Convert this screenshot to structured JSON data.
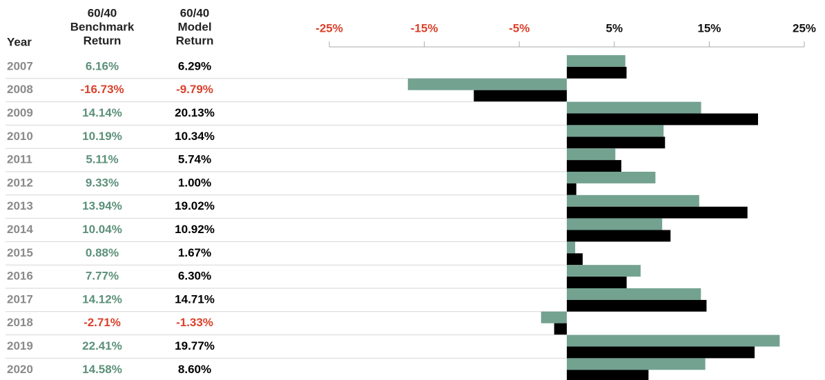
{
  "chart_data": {
    "type": "bar",
    "orientation": "horizontal",
    "year_header": "Year",
    "column_headers": [
      [
        "60/40",
        "Benchmark",
        "Return"
      ],
      [
        "60/40",
        "Model",
        "Return"
      ]
    ],
    "categories": [
      "2007",
      "2008",
      "2009",
      "2010",
      "2011",
      "2012",
      "2013",
      "2014",
      "2015",
      "2016",
      "2017",
      "2018",
      "2019",
      "2020"
    ],
    "series": [
      {
        "name": "60/40 Benchmark Return",
        "color": "#74a291",
        "text_color": "#5b9079",
        "values": [
          6.16,
          -16.73,
          14.14,
          10.19,
          5.11,
          9.33,
          13.94,
          10.04,
          0.88,
          7.77,
          14.12,
          -2.71,
          22.41,
          14.58
        ],
        "value_labels": [
          "6.16%",
          "-16.73%",
          "14.14%",
          "10.19%",
          "5.11%",
          "9.33%",
          "13.94%",
          "10.04%",
          "0.88%",
          "7.77%",
          "14.12%",
          "-2.71%",
          "22.41%",
          "14.58%"
        ]
      },
      {
        "name": "60/40 Model Return",
        "color": "#000000",
        "text_color": "#000000",
        "values": [
          6.29,
          -9.79,
          20.13,
          10.34,
          5.74,
          1.0,
          19.02,
          10.92,
          1.67,
          6.3,
          14.71,
          -1.33,
          19.77,
          8.6
        ],
        "value_labels": [
          "6.29%",
          "-9.79%",
          "20.13%",
          "10.34%",
          "5.74%",
          "1.00%",
          "19.02%",
          "10.92%",
          "1.67%",
          "6.30%",
          "14.71%",
          "-1.33%",
          "19.77%",
          "8.60%"
        ]
      }
    ],
    "negative_color": "#d9412b",
    "xlim": [
      -25,
      25
    ],
    "xticks": [
      {
        "value": -25,
        "label": "-25%"
      },
      {
        "value": -15,
        "label": "-15%"
      },
      {
        "value": -5,
        "label": "-5%"
      },
      {
        "value": 5,
        "label": "5%"
      },
      {
        "value": 15,
        "label": "15%"
      },
      {
        "value": 25,
        "label": "25%"
      }
    ]
  }
}
